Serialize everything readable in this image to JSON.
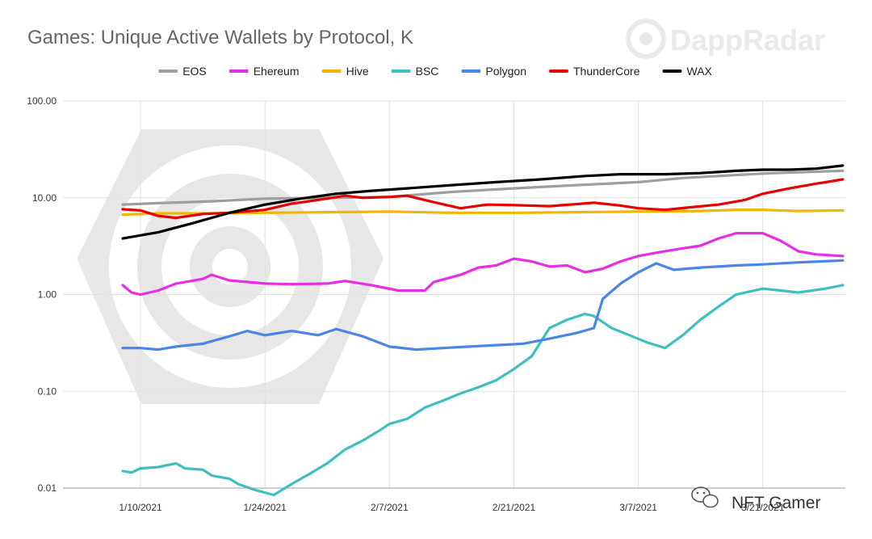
{
  "chart_data": {
    "type": "line",
    "title": "Games: Unique Active Wallets by Protocol, K",
    "y_scale": "log",
    "ylim": [
      0.01,
      100
    ],
    "y_ticks": [
      "0.01",
      "0.10",
      "1.00",
      "10.00",
      "100.00"
    ],
    "x_tick_labels": [
      "1/10/2021",
      "1/24/2021",
      "2/7/2021",
      "2/21/2021",
      "3/7/2021",
      "3/21/2021"
    ],
    "x_range": [
      "2021-01-08",
      "2021-03-30"
    ],
    "grid": true,
    "legend_position": "top",
    "series": [
      {
        "name": "EOS",
        "color": "#9e9e9e",
        "points": [
          [
            "2021-01-08",
            8.5
          ],
          [
            "2021-01-12",
            8.8
          ],
          [
            "2021-01-18",
            9.2
          ],
          [
            "2021-01-24",
            9.8
          ],
          [
            "2021-01-31",
            10.0
          ],
          [
            "2021-02-07",
            10.2
          ],
          [
            "2021-02-14",
            11.5
          ],
          [
            "2021-02-21",
            12.5
          ],
          [
            "2021-02-28",
            13.5
          ],
          [
            "2021-03-07",
            14.5
          ],
          [
            "2021-03-12",
            16.0
          ],
          [
            "2021-03-17",
            17.0
          ],
          [
            "2021-03-21",
            17.8
          ],
          [
            "2021-03-26",
            18.5
          ],
          [
            "2021-03-30",
            19.0
          ]
        ]
      },
      {
        "name": "Ehereum",
        "color": "#e62ee6",
        "points": [
          [
            "2021-01-08",
            1.25
          ],
          [
            "2021-01-09",
            1.05
          ],
          [
            "2021-01-10",
            1.0
          ],
          [
            "2021-01-12",
            1.1
          ],
          [
            "2021-01-14",
            1.3
          ],
          [
            "2021-01-17",
            1.45
          ],
          [
            "2021-01-18",
            1.6
          ],
          [
            "2021-01-20",
            1.4
          ],
          [
            "2021-01-24",
            1.3
          ],
          [
            "2021-01-27",
            1.28
          ],
          [
            "2021-01-31",
            1.3
          ],
          [
            "2021-02-02",
            1.38
          ],
          [
            "2021-02-05",
            1.25
          ],
          [
            "2021-02-08",
            1.1
          ],
          [
            "2021-02-11",
            1.1
          ],
          [
            "2021-02-12",
            1.35
          ],
          [
            "2021-02-15",
            1.6
          ],
          [
            "2021-02-17",
            1.9
          ],
          [
            "2021-02-19",
            2.0
          ],
          [
            "2021-02-21",
            2.35
          ],
          [
            "2021-02-23",
            2.2
          ],
          [
            "2021-02-25",
            1.95
          ],
          [
            "2021-02-27",
            2.0
          ],
          [
            "2021-03-01",
            1.7
          ],
          [
            "2021-03-03",
            1.85
          ],
          [
            "2021-03-05",
            2.2
          ],
          [
            "2021-03-07",
            2.5
          ],
          [
            "2021-03-09",
            2.7
          ],
          [
            "2021-03-11",
            2.9
          ],
          [
            "2021-03-14",
            3.2
          ],
          [
            "2021-03-16",
            3.8
          ],
          [
            "2021-03-18",
            4.3
          ],
          [
            "2021-03-21",
            4.3
          ],
          [
            "2021-03-23",
            3.6
          ],
          [
            "2021-03-25",
            2.8
          ],
          [
            "2021-03-27",
            2.6
          ],
          [
            "2021-03-30",
            2.5
          ]
        ]
      },
      {
        "name": "Hive",
        "color": "#f4b400",
        "points": [
          [
            "2021-01-08",
            6.7
          ],
          [
            "2021-01-12",
            6.9
          ],
          [
            "2021-01-18",
            6.9
          ],
          [
            "2021-01-24",
            7.0
          ],
          [
            "2021-01-31",
            7.1
          ],
          [
            "2021-02-07",
            7.2
          ],
          [
            "2021-02-14",
            7.0
          ],
          [
            "2021-02-21",
            7.0
          ],
          [
            "2021-02-28",
            7.1
          ],
          [
            "2021-03-07",
            7.2
          ],
          [
            "2021-03-14",
            7.3
          ],
          [
            "2021-03-18",
            7.5
          ],
          [
            "2021-03-21",
            7.5
          ],
          [
            "2021-03-25",
            7.3
          ],
          [
            "2021-03-30",
            7.4
          ]
        ]
      },
      {
        "name": "BSC",
        "color": "#3fbfbf",
        "points": [
          [
            "2021-01-08",
            0.015
          ],
          [
            "2021-01-09",
            0.0145
          ],
          [
            "2021-01-10",
            0.016
          ],
          [
            "2021-01-12",
            0.0165
          ],
          [
            "2021-01-14",
            0.018
          ],
          [
            "2021-01-15",
            0.016
          ],
          [
            "2021-01-17",
            0.0155
          ],
          [
            "2021-01-18",
            0.0135
          ],
          [
            "2021-01-20",
            0.0125
          ],
          [
            "2021-01-21",
            0.011
          ],
          [
            "2021-01-23",
            0.0095
          ],
          [
            "2021-01-25",
            0.0085
          ],
          [
            "2021-01-27",
            0.011
          ],
          [
            "2021-01-29",
            0.014
          ],
          [
            "2021-01-31",
            0.018
          ],
          [
            "2021-02-02",
            0.025
          ],
          [
            "2021-02-04",
            0.031
          ],
          [
            "2021-02-06",
            0.04
          ],
          [
            "2021-02-07",
            0.046
          ],
          [
            "2021-02-09",
            0.052
          ],
          [
            "2021-02-11",
            0.068
          ],
          [
            "2021-02-13",
            0.08
          ],
          [
            "2021-02-15",
            0.095
          ],
          [
            "2021-02-17",
            0.11
          ],
          [
            "2021-02-19",
            0.13
          ],
          [
            "2021-02-21",
            0.17
          ],
          [
            "2021-02-23",
            0.23
          ],
          [
            "2021-02-25",
            0.45
          ],
          [
            "2021-02-27",
            0.55
          ],
          [
            "2021-03-01",
            0.63
          ],
          [
            "2021-03-02",
            0.6
          ],
          [
            "2021-03-04",
            0.45
          ],
          [
            "2021-03-06",
            0.38
          ],
          [
            "2021-03-08",
            0.32
          ],
          [
            "2021-03-10",
            0.28
          ],
          [
            "2021-03-12",
            0.38
          ],
          [
            "2021-03-14",
            0.55
          ],
          [
            "2021-03-16",
            0.75
          ],
          [
            "2021-03-18",
            1.0
          ],
          [
            "2021-03-21",
            1.15
          ],
          [
            "2021-03-23",
            1.1
          ],
          [
            "2021-03-25",
            1.05
          ],
          [
            "2021-03-28",
            1.15
          ],
          [
            "2021-03-30",
            1.25
          ]
        ]
      },
      {
        "name": "Polygon",
        "color": "#4a86e8",
        "points": [
          [
            "2021-01-08",
            0.28
          ],
          [
            "2021-01-10",
            0.28
          ],
          [
            "2021-01-12",
            0.27
          ],
          [
            "2021-01-14",
            0.29
          ],
          [
            "2021-01-17",
            0.31
          ],
          [
            "2021-01-20",
            0.37
          ],
          [
            "2021-01-22",
            0.42
          ],
          [
            "2021-01-24",
            0.38
          ],
          [
            "2021-01-27",
            0.42
          ],
          [
            "2021-01-30",
            0.38
          ],
          [
            "2021-02-01",
            0.44
          ],
          [
            "2021-02-04",
            0.37
          ],
          [
            "2021-02-07",
            0.29
          ],
          [
            "2021-02-10",
            0.27
          ],
          [
            "2021-02-13",
            0.28
          ],
          [
            "2021-02-16",
            0.29
          ],
          [
            "2021-02-19",
            0.3
          ],
          [
            "2021-02-22",
            0.31
          ],
          [
            "2021-02-25",
            0.35
          ],
          [
            "2021-02-28",
            0.4
          ],
          [
            "2021-03-02",
            0.45
          ],
          [
            "2021-03-03",
            0.9
          ],
          [
            "2021-03-05",
            1.3
          ],
          [
            "2021-03-07",
            1.7
          ],
          [
            "2021-03-09",
            2.1
          ],
          [
            "2021-03-11",
            1.8
          ],
          [
            "2021-03-14",
            1.9
          ],
          [
            "2021-03-18",
            2.0
          ],
          [
            "2021-03-21",
            2.05
          ],
          [
            "2021-03-25",
            2.15
          ],
          [
            "2021-03-30",
            2.25
          ]
        ]
      },
      {
        "name": "ThunderCore",
        "color": "#e60000",
        "points": [
          [
            "2021-01-08",
            7.6
          ],
          [
            "2021-01-10",
            7.4
          ],
          [
            "2021-01-12",
            6.5
          ],
          [
            "2021-01-14",
            6.2
          ],
          [
            "2021-01-17",
            6.8
          ],
          [
            "2021-01-20",
            7.0
          ],
          [
            "2021-01-24",
            7.5
          ],
          [
            "2021-01-27",
            8.7
          ],
          [
            "2021-01-30",
            9.5
          ],
          [
            "2021-02-02",
            10.5
          ],
          [
            "2021-02-04",
            10.0
          ],
          [
            "2021-02-07",
            10.2
          ],
          [
            "2021-02-09",
            10.5
          ],
          [
            "2021-02-12",
            9.0
          ],
          [
            "2021-02-15",
            7.8
          ],
          [
            "2021-02-18",
            8.5
          ],
          [
            "2021-02-21",
            8.4
          ],
          [
            "2021-02-25",
            8.2
          ],
          [
            "2021-02-28",
            8.6
          ],
          [
            "2021-03-02",
            8.9
          ],
          [
            "2021-03-05",
            8.3
          ],
          [
            "2021-03-07",
            7.8
          ],
          [
            "2021-03-10",
            7.5
          ],
          [
            "2021-03-13",
            8.0
          ],
          [
            "2021-03-16",
            8.5
          ],
          [
            "2021-03-19",
            9.5
          ],
          [
            "2021-03-21",
            11.0
          ],
          [
            "2021-03-24",
            12.5
          ],
          [
            "2021-03-27",
            14.0
          ],
          [
            "2021-03-30",
            15.5
          ]
        ]
      },
      {
        "name": "WAX",
        "color": "#000000",
        "points": [
          [
            "2021-01-08",
            3.8
          ],
          [
            "2021-01-12",
            4.4
          ],
          [
            "2021-01-16",
            5.5
          ],
          [
            "2021-01-20",
            7.0
          ],
          [
            "2021-01-24",
            8.5
          ],
          [
            "2021-01-28",
            9.8
          ],
          [
            "2021-02-01",
            11.0
          ],
          [
            "2021-02-05",
            11.8
          ],
          [
            "2021-02-09",
            12.5
          ],
          [
            "2021-02-14",
            13.5
          ],
          [
            "2021-02-19",
            14.5
          ],
          [
            "2021-02-24",
            15.5
          ],
          [
            "2021-03-01",
            16.8
          ],
          [
            "2021-03-05",
            17.5
          ],
          [
            "2021-03-10",
            17.5
          ],
          [
            "2021-03-14",
            18.0
          ],
          [
            "2021-03-18",
            19.0
          ],
          [
            "2021-03-21",
            19.5
          ],
          [
            "2021-03-24",
            19.5
          ],
          [
            "2021-03-27",
            20.0
          ],
          [
            "2021-03-30",
            21.5
          ]
        ]
      }
    ]
  },
  "watermark": {
    "brand": "DappRadar",
    "wechat": "NFT Gamer"
  }
}
